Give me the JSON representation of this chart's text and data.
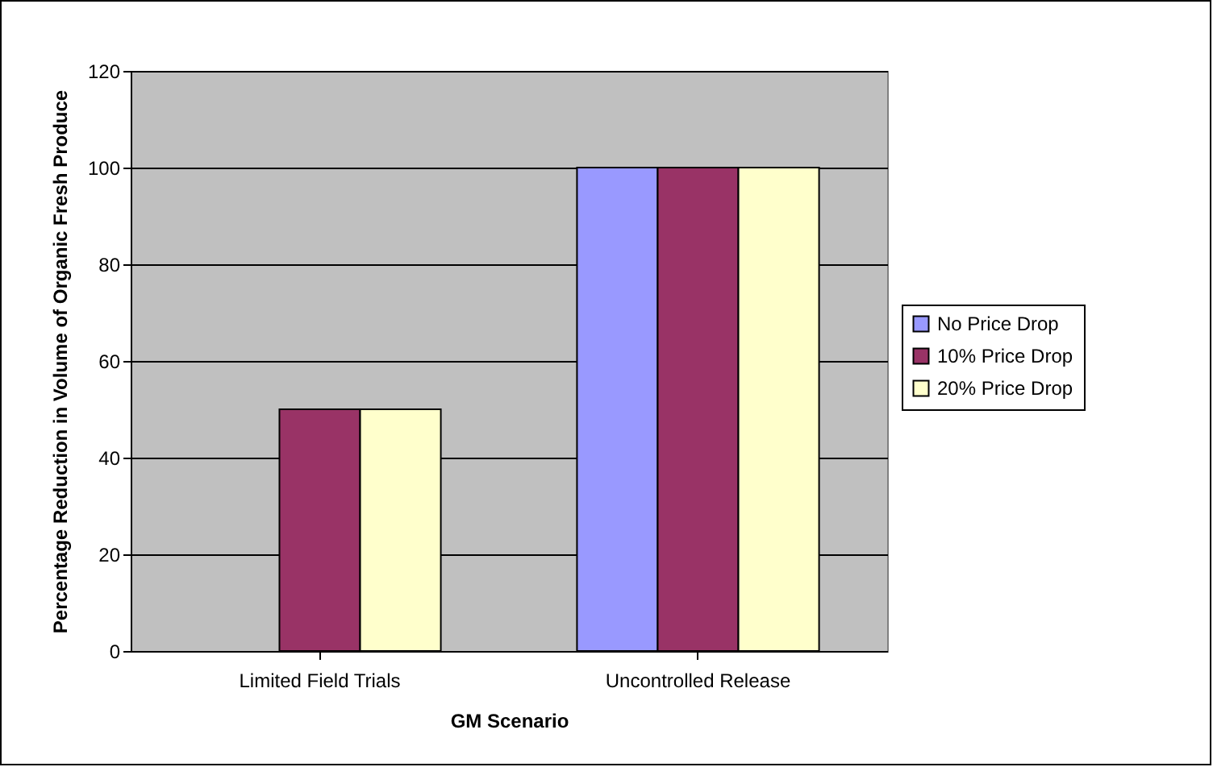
{
  "chart_data": {
    "type": "bar",
    "xlabel": "GM Scenario",
    "ylabel": "Percentage Reduction in Volume of Organic Fresh Produce",
    "categories": [
      "Limited Field Trials",
      "Uncontrolled Release"
    ],
    "series": [
      {
        "name": "No Price Drop",
        "color": "#9999ff",
        "values": [
          null,
          100
        ]
      },
      {
        "name": "10% Price Drop",
        "color": "#993366",
        "values": [
          50,
          100
        ]
      },
      {
        "name": "20% Price Drop",
        "color": "#ffffcc",
        "values": [
          50,
          100
        ]
      }
    ],
    "ylim": [
      0,
      120
    ],
    "yticks": [
      0,
      20,
      40,
      60,
      80,
      100,
      120
    ],
    "grid": "y",
    "legend": "right"
  }
}
